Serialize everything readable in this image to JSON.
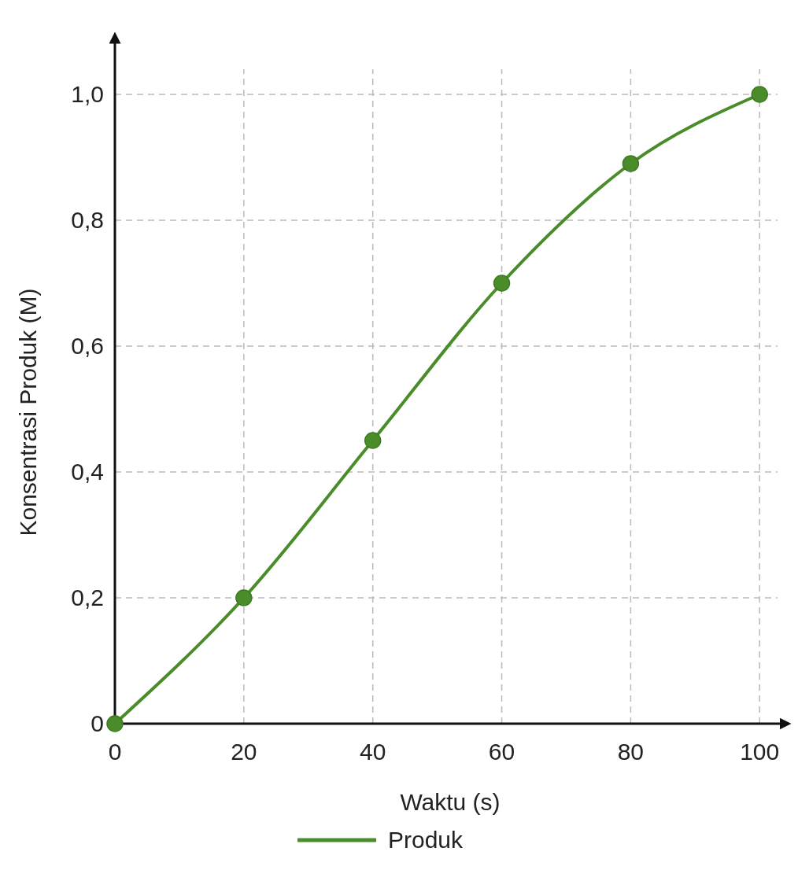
{
  "chart_data": {
    "type": "line",
    "xlabel": "Waktu (s)",
    "ylabel": "Konsentrasi Produk (M)",
    "x": [
      0,
      20,
      40,
      60,
      80,
      100
    ],
    "series": [
      {
        "name": "Produk",
        "color": "#4a8c2a",
        "values": [
          0,
          0.2,
          0.45,
          0.7,
          0.89,
          1.0
        ]
      }
    ],
    "xlim": [
      0,
      104
    ],
    "ylim": [
      0,
      1.09
    ],
    "xticks": [
      0,
      20,
      40,
      60,
      80,
      100
    ],
    "yticks": [
      {
        "value": 0,
        "label": "0"
      },
      {
        "value": 0.2,
        "label": "0,2"
      },
      {
        "value": 0.4,
        "label": "0,4"
      },
      {
        "value": 0.6,
        "label": "0,6"
      },
      {
        "value": 0.8,
        "label": "0,8"
      },
      {
        "value": 1.0,
        "label": "1,0"
      }
    ],
    "grid": true,
    "legend": "bottom",
    "marker": "circle"
  }
}
